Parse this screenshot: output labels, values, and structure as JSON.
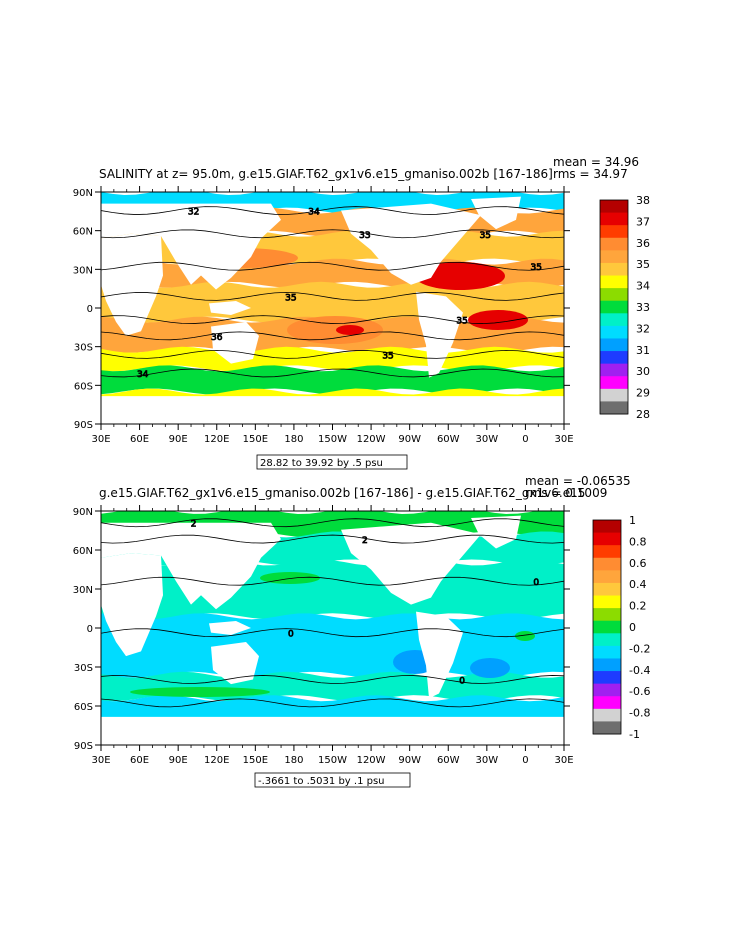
{
  "chart_data": [
    {
      "type": "heatmap",
      "title": "SALINITY at z=  95.0m, g.e15.GIAF.T62_gx1v6.e15_gmaniso.002b [167-186]",
      "stat_mean": "mean = 34.96",
      "stat_rms": "rms = 34.97",
      "x_ticks": [
        "30E",
        "60E",
        "90E",
        "120E",
        "150E",
        "180",
        "150W",
        "120W",
        "90W",
        "60W",
        "30W",
        "0",
        "30E"
      ],
      "y_ticks": [
        "90N",
        "60N",
        "30N",
        "0",
        "30S",
        "60S",
        "90S"
      ],
      "colorbar": {
        "labels": [
          "38",
          "37",
          "36",
          "35",
          "34",
          "33",
          "32",
          "31",
          "30",
          "29",
          "28"
        ],
        "colors": [
          "#b40000",
          "#e60000",
          "#ff3c00",
          "#ff8c32",
          "#ffa53c",
          "#ffc83c",
          "#ffff00",
          "#8cdc00",
          "#00dc3c",
          "#00f0c8",
          "#00dcff",
          "#00a0ff",
          "#1e3cff",
          "#a020f0",
          "#ff00ff",
          "#d2d2d2",
          "#6e6e6e"
        ]
      },
      "contour_info": "28.82 to 39.92 by .5 psu",
      "contour_labels": [
        "32",
        "33",
        "35",
        "35",
        "35",
        "36",
        "35",
        "34",
        "34",
        "35"
      ]
    },
    {
      "type": "heatmap",
      "title": "g.e15.GIAF.T62_gx1v6.e15_gmaniso.002b [167-186] - g.e15.GIAF.T62_gx1v6.e15",
      "stat_mean": "mean = -0.06535",
      "stat_rms": "rms = 0.1009",
      "x_ticks": [
        "30E",
        "60E",
        "90E",
        "120E",
        "150E",
        "180",
        "150W",
        "120W",
        "90W",
        "60W",
        "30W",
        "0",
        "30E"
      ],
      "y_ticks": [
        "90N",
        "60N",
        "30N",
        "0",
        "30S",
        "60S",
        "90S"
      ],
      "colorbar": {
        "labels": [
          "1",
          "0.8",
          "0.6",
          "0.4",
          "0.2",
          "0",
          "-0.2",
          "-0.4",
          "-0.6",
          "-0.8",
          "-1"
        ],
        "colors": [
          "#b40000",
          "#e60000",
          "#ff3c00",
          "#ff8c32",
          "#ffa53c",
          "#ffc83c",
          "#ffff00",
          "#8cdc00",
          "#00dc3c",
          "#00f0c8",
          "#00dcff",
          "#00a0ff",
          "#1e3cff",
          "#a020f0",
          "#ff00ff",
          "#d2d2d2",
          "#6e6e6e"
        ]
      },
      "contour_info": "-.3661 to .5031 by .1 psu",
      "contour_labels": [
        "2",
        "2",
        "0",
        "0",
        "0"
      ]
    }
  ]
}
